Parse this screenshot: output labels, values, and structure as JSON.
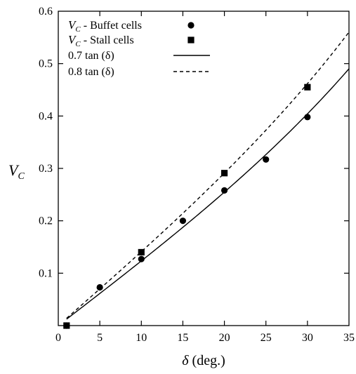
{
  "chart_data": {
    "type": "scatter",
    "xlabel": "δ (deg.)",
    "ylabel": "V_C",
    "xlim": [
      0,
      35
    ],
    "ylim": [
      0,
      0.6
    ],
    "x_ticks": [
      0,
      5,
      10,
      15,
      20,
      25,
      30,
      35
    ],
    "y_ticks": [
      0.1,
      0.2,
      0.3,
      0.4,
      0.5,
      0.6
    ],
    "grid": false,
    "legend_position": "top-left",
    "series": [
      {
        "name": "V_C - Buffet cells",
        "label_main": "V",
        "label_sub": "C",
        "label_rest": " - Buffet cells",
        "kind": "points",
        "marker": "circle",
        "points": [
          {
            "x": 1,
            "y": 0.0
          },
          {
            "x": 5,
            "y": 0.073
          },
          {
            "x": 10,
            "y": 0.127
          },
          {
            "x": 15,
            "y": 0.2
          },
          {
            "x": 20,
            "y": 0.258
          },
          {
            "x": 25,
            "y": 0.317
          },
          {
            "x": 30,
            "y": 0.398
          }
        ]
      },
      {
        "name": "V_C - Stall cells",
        "label_main": "V",
        "label_sub": "C",
        "label_rest": " - Stall cells",
        "kind": "points",
        "marker": "square",
        "points": [
          {
            "x": 1,
            "y": 0.0
          },
          {
            "x": 10,
            "y": 0.14
          },
          {
            "x": 20,
            "y": 0.291
          },
          {
            "x": 30,
            "y": 0.455
          }
        ]
      },
      {
        "name": "0.7 tan (δ)",
        "kind": "curve",
        "style": "solid",
        "coefficient": 0.7,
        "function": "tan",
        "x_range": [
          1,
          35
        ]
      },
      {
        "name": "0.8 tan (δ)",
        "kind": "curve",
        "style": "dashed",
        "coefficient": 0.8,
        "function": "tan",
        "x_range": [
          1,
          35
        ]
      }
    ]
  }
}
